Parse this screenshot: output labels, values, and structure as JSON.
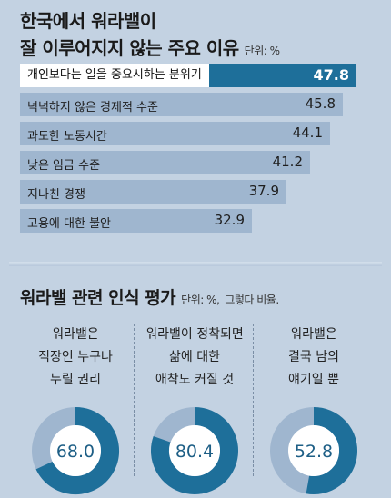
{
  "chart_data": [
    {
      "type": "bar",
      "title": "한국에서 워라밸이 잘 이루어지지 않는 주요 이유",
      "unit": "단위: %",
      "categories": [
        "개인보다는 일을 중요시하는 분위기",
        "넉넉하지 않은 경제적 수준",
        "과도한 노동시간",
        "낮은 임금 수준",
        "지나친 경쟁",
        "고용에 대한 불안"
      ],
      "values": [
        47.8,
        45.8,
        44.1,
        41.2,
        37.9,
        32.9
      ],
      "value_labels": [
        "47.8",
        "45.8",
        "44.1",
        "41.2",
        "37.9",
        "32.9"
      ],
      "highlight_index": 0,
      "xlim": [
        0,
        47.8
      ]
    },
    {
      "type": "pie",
      "title": "워라밸 관련 인식 평가",
      "unit": "단위: %,",
      "note": "그렇다 비율.",
      "items": [
        {
          "label_lines": [
            "워라밸은",
            "직장인 누구나",
            "누릴 권리"
          ],
          "value": 68.0,
          "value_label": "68.0"
        },
        {
          "label_lines": [
            "워라밸이 정착되면",
            "삶에 대한",
            "애착도 커질 것"
          ],
          "value": 80.4,
          "value_label": "80.4"
        },
        {
          "label_lines": [
            "워라밸은",
            "결국 남의",
            "얘기일 뿐"
          ],
          "value": 52.8,
          "value_label": "52.8"
        }
      ],
      "max": 100
    }
  ],
  "colors": {
    "accent": "#1e6f9a",
    "bar": "#9fb6cf",
    "donut_rest": "#9fb6cf",
    "card": "#ffffff",
    "background": "#c3d2e2"
  }
}
